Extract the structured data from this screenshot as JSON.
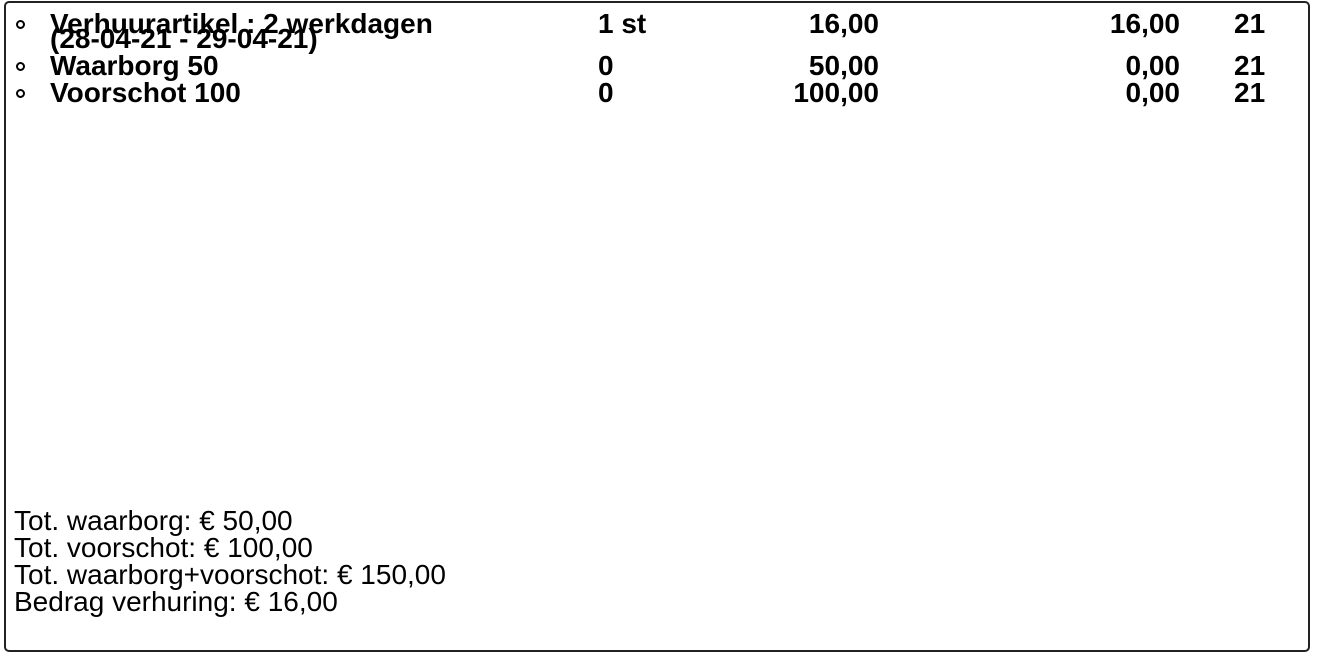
{
  "items": [
    {
      "description_line1": "Verhuurartikel : 2 werkdagen",
      "description_line2": "(28-04-21 - 29-04-21)",
      "quantity": "1 st",
      "price": "16,00",
      "total": "16,00",
      "vat": "21"
    },
    {
      "description_line1": "Waarborg 50",
      "description_line2": "",
      "quantity": "0",
      "price": "50,00",
      "total": "0,00",
      "vat": "21"
    },
    {
      "description_line1": "Voorschot 100",
      "description_line2": "",
      "quantity": "0",
      "price": "100,00",
      "total": "0,00",
      "vat": "21"
    }
  ],
  "summary": {
    "waarborg": "Tot. waarborg: € 50,00",
    "voorschot": "Tot. voorschot: € 100,00",
    "waarborg_voorschot": "Tot. waarborg+voorschot: € 150,00",
    "verhuring": "Bedrag verhuring: € 16,00"
  },
  "colors": {
    "text": "#000000",
    "border": "#222222",
    "background": "#ffffff"
  }
}
